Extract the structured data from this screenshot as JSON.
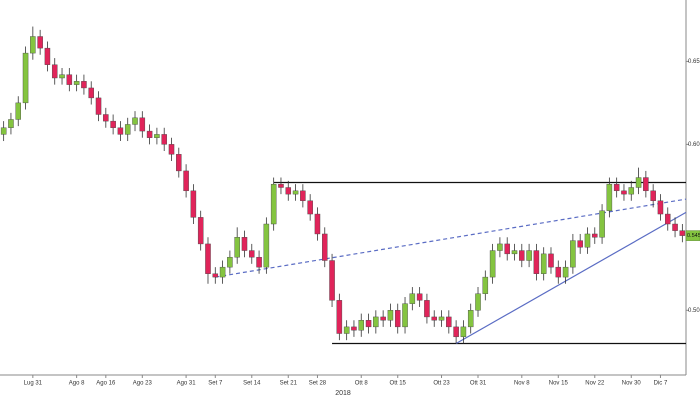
{
  "chart_data": {
    "type": "candlestick",
    "up_color": "#84c440",
    "down_color": "#e0245a",
    "categories": [
      null,
      null,
      null,
      null,
      "Lug 31",
      null,
      null,
      null,
      null,
      null,
      "Ago 8",
      null,
      null,
      null,
      "Ago 16",
      null,
      null,
      null,
      null,
      "Ago 23",
      null,
      null,
      null,
      null,
      null,
      "Ago 31",
      null,
      null,
      null,
      "Set 7",
      null,
      null,
      null,
      null,
      "Set 14",
      null,
      null,
      null,
      null,
      "Set 21",
      null,
      null,
      null,
      "Set 28",
      null,
      null,
      null,
      null,
      null,
      "Ott 8",
      null,
      null,
      null,
      null,
      "Ott 15",
      null,
      null,
      null,
      null,
      null,
      "Ott 23",
      null,
      null,
      null,
      null,
      "Ott 31",
      null,
      null,
      null,
      null,
      null,
      "Nov 8",
      null,
      null,
      null,
      null,
      "Nov 15",
      null,
      null,
      null,
      null,
      "Nov 22",
      null,
      null,
      null,
      null,
      "Nov 30",
      null,
      null,
      null,
      "Dic 7",
      null,
      null,
      null
    ],
    "year_label": "2018",
    "open": [
      0.606,
      0.61,
      0.615,
      0.625,
      0.655,
      0.665,
      0.658,
      0.648,
      0.64,
      0.642,
      0.636,
      0.638,
      0.634,
      0.628,
      0.618,
      0.614,
      0.61,
      0.606,
      0.612,
      0.616,
      0.608,
      0.604,
      0.606,
      0.6,
      0.594,
      0.584,
      0.572,
      0.556,
      0.54,
      0.522,
      0.52,
      0.526,
      0.532,
      0.544,
      0.536,
      0.532,
      0.526,
      0.552,
      0.576,
      0.574,
      0.57,
      0.572,
      0.566,
      0.558,
      0.546,
      0.53,
      0.506,
      0.486,
      0.49,
      0.488,
      0.494,
      0.49,
      0.496,
      0.494,
      0.5,
      0.49,
      0.504,
      0.51,
      0.506,
      0.496,
      0.494,
      0.496,
      0.49,
      0.484,
      0.49,
      0.5,
      0.51,
      0.52,
      0.536,
      0.54,
      0.534,
      0.536,
      0.53,
      0.536,
      0.522,
      0.534,
      0.526,
      0.52,
      0.526,
      0.542,
      0.538,
      0.546,
      0.544,
      0.56,
      0.576,
      0.572,
      0.57,
      0.574,
      0.58,
      0.572,
      0.566,
      0.558,
      0.552,
      0.548
    ],
    "high": [
      0.614,
      0.619,
      0.629,
      0.659,
      0.671,
      0.669,
      0.662,
      0.652,
      0.646,
      0.646,
      0.642,
      0.642,
      0.638,
      0.632,
      0.622,
      0.618,
      0.614,
      0.616,
      0.62,
      0.62,
      0.612,
      0.61,
      0.61,
      0.604,
      0.598,
      0.588,
      0.576,
      0.56,
      0.544,
      0.526,
      0.53,
      0.536,
      0.55,
      0.548,
      0.54,
      0.536,
      0.556,
      0.58,
      0.58,
      0.578,
      0.576,
      0.576,
      0.57,
      0.562,
      0.55,
      0.534,
      0.51,
      0.494,
      0.494,
      0.498,
      0.498,
      0.5,
      0.5,
      0.504,
      0.504,
      0.508,
      0.514,
      0.514,
      0.51,
      0.5,
      0.5,
      0.5,
      0.494,
      0.494,
      0.504,
      0.514,
      0.524,
      0.54,
      0.544,
      0.544,
      0.54,
      0.54,
      0.54,
      0.54,
      0.538,
      0.538,
      0.53,
      0.53,
      0.546,
      0.546,
      0.55,
      0.55,
      0.564,
      0.58,
      0.58,
      0.576,
      0.578,
      0.586,
      0.584,
      0.576,
      0.57,
      0.562,
      0.556,
      0.552
    ],
    "low": [
      0.602,
      0.606,
      0.611,
      0.621,
      0.651,
      0.654,
      0.644,
      0.636,
      0.636,
      0.632,
      0.632,
      0.63,
      0.624,
      0.614,
      0.61,
      0.606,
      0.602,
      0.602,
      0.608,
      0.604,
      0.6,
      0.6,
      0.596,
      0.59,
      0.58,
      0.568,
      0.552,
      0.536,
      0.516,
      0.516,
      0.516,
      0.522,
      0.528,
      0.532,
      0.528,
      0.522,
      0.522,
      0.548,
      0.57,
      0.566,
      0.566,
      0.562,
      0.554,
      0.542,
      0.526,
      0.502,
      0.482,
      0.482,
      0.484,
      0.484,
      0.486,
      0.486,
      0.49,
      0.49,
      0.486,
      0.486,
      0.5,
      0.502,
      0.492,
      0.49,
      0.49,
      0.486,
      0.48,
      0.48,
      0.486,
      0.496,
      0.506,
      0.516,
      0.532,
      0.53,
      0.53,
      0.526,
      0.526,
      0.518,
      0.518,
      0.522,
      0.516,
      0.516,
      0.522,
      0.534,
      0.534,
      0.54,
      0.54,
      0.556,
      0.568,
      0.566,
      0.566,
      0.57,
      0.568,
      0.562,
      0.554,
      0.548,
      0.544,
      0.541
    ],
    "close": [
      0.61,
      0.615,
      0.625,
      0.655,
      0.665,
      0.658,
      0.648,
      0.64,
      0.642,
      0.636,
      0.638,
      0.634,
      0.628,
      0.618,
      0.614,
      0.61,
      0.606,
      0.612,
      0.616,
      0.608,
      0.604,
      0.606,
      0.6,
      0.594,
      0.584,
      0.572,
      0.556,
      0.54,
      0.522,
      0.52,
      0.526,
      0.532,
      0.544,
      0.536,
      0.532,
      0.526,
      0.552,
      0.576,
      0.574,
      0.57,
      0.572,
      0.566,
      0.558,
      0.546,
      0.53,
      0.506,
      0.486,
      0.49,
      0.488,
      0.494,
      0.49,
      0.496,
      0.494,
      0.5,
      0.49,
      0.504,
      0.51,
      0.506,
      0.496,
      0.494,
      0.496,
      0.49,
      0.484,
      0.49,
      0.5,
      0.51,
      0.52,
      0.536,
      0.54,
      0.534,
      0.536,
      0.53,
      0.536,
      0.522,
      0.534,
      0.526,
      0.52,
      0.526,
      0.542,
      0.538,
      0.546,
      0.544,
      0.56,
      0.576,
      0.572,
      0.57,
      0.574,
      0.58,
      0.572,
      0.566,
      0.558,
      0.552,
      0.548,
      0.545
    ],
    "ylim": [
      0.461,
      0.687
    ],
    "yticks": [
      {
        "value": 0.5,
        "label": "0.50"
      },
      {
        "value": 0.6,
        "label": "0.60"
      },
      0.65
    ],
    "last_price_color": "#84c440",
    "trendlines": [
      {
        "from": [
          37,
          0.577
        ],
        "to": [
          93,
          0.577
        ],
        "style": "solid",
        "color": "#111111"
      },
      {
        "from": [
          45,
          0.48
        ],
        "to": [
          93,
          0.48
        ],
        "style": "solid",
        "color": "#111111"
      },
      {
        "from": [
          29,
          0.52
        ],
        "to": [
          93,
          0.567
        ],
        "style": "dashed",
        "color": "#5a6cc4"
      },
      {
        "from": [
          62,
          0.48
        ],
        "to": [
          93,
          0.559
        ],
        "style": "solid",
        "color": "#5a6cc4"
      }
    ]
  }
}
